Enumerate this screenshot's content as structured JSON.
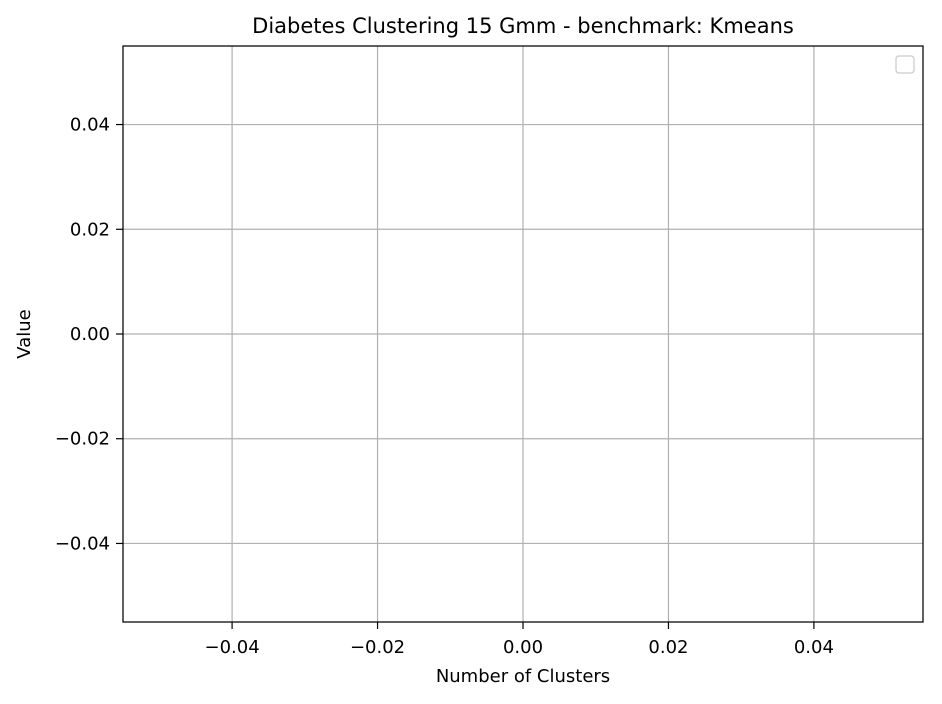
{
  "chart_data": {
    "type": "line",
    "title": "Diabetes Clustering 15 Gmm - benchmark: Kmeans",
    "xlabel": "Number of Clusters",
    "ylabel": "Value",
    "xlim": [
      -0.055,
      0.055
    ],
    "ylim": [
      -0.055,
      0.055
    ],
    "x_ticks": [
      -0.04,
      -0.02,
      0.0,
      0.02,
      0.04
    ],
    "x_tick_labels": [
      "−0.04",
      "−0.02",
      "0.00",
      "0.02",
      "0.04"
    ],
    "y_ticks": [
      0.04,
      0.02,
      0.0,
      -0.02,
      -0.04
    ],
    "y_tick_labels": [
      "0.04",
      "0.02",
      "0.00",
      "−0.02",
      "−0.04"
    ],
    "grid": true,
    "legend": "upper right",
    "legend_entries": [],
    "series": [],
    "colors": {
      "grid": "#b0b0b0",
      "axes": "#000000",
      "background": "#ffffff",
      "legend_border": "#cccccc"
    }
  }
}
